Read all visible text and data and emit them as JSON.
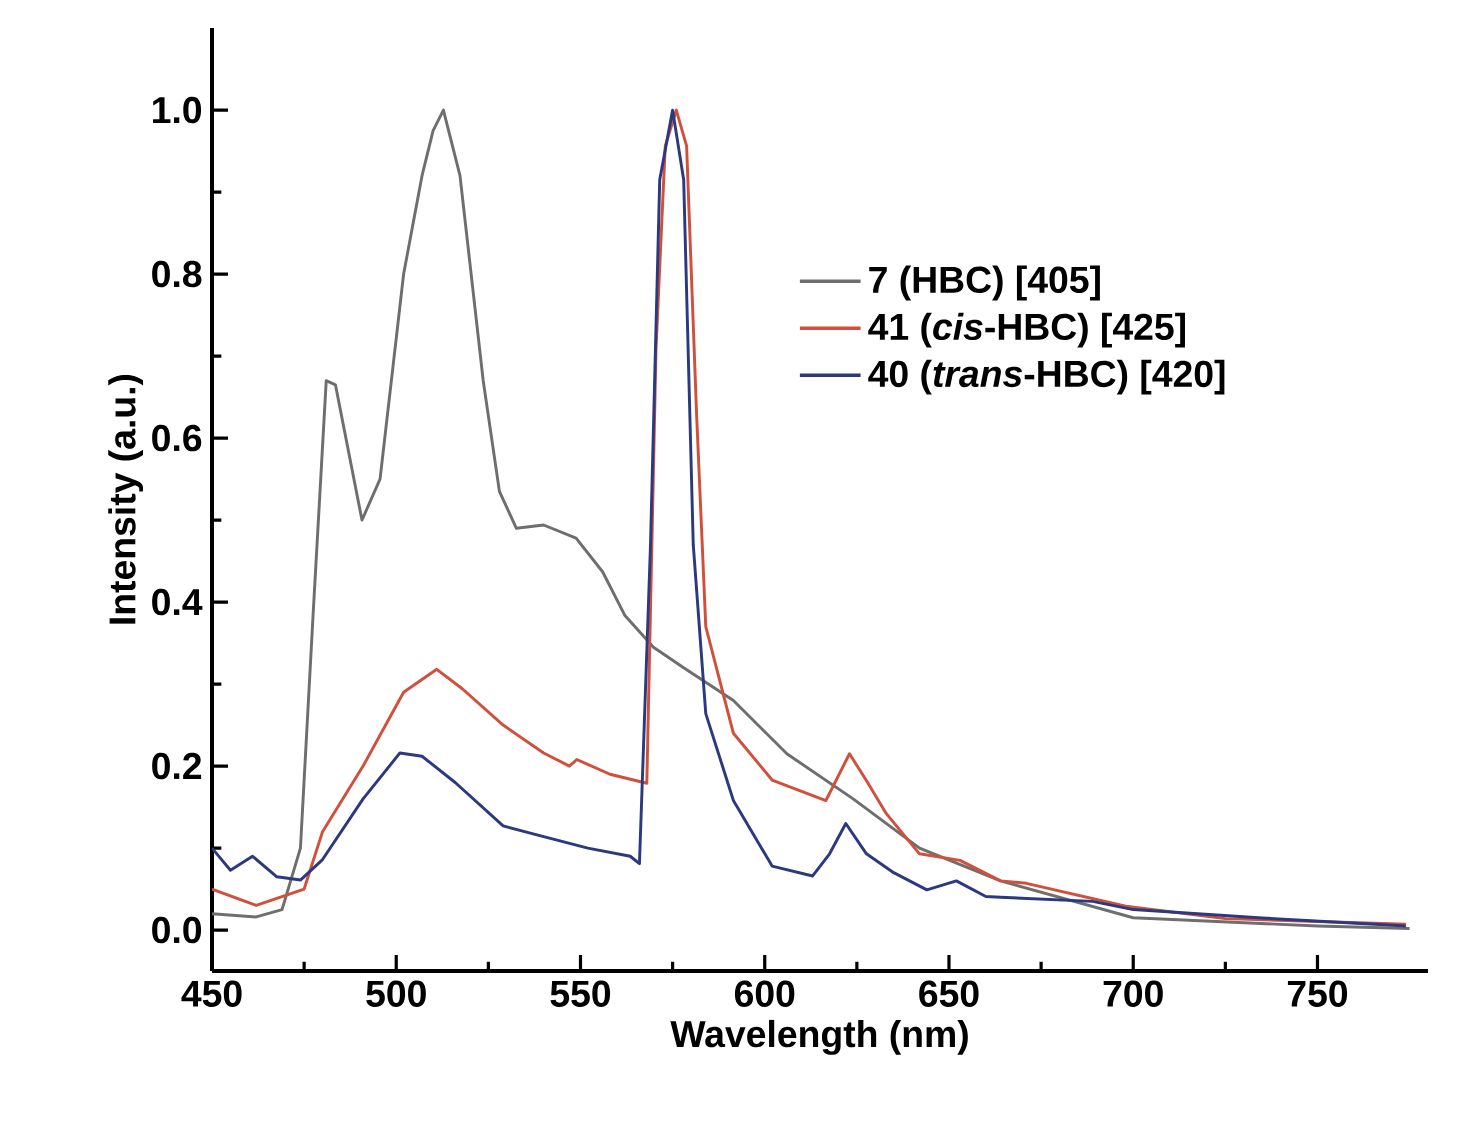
{
  "chart_data": {
    "type": "line",
    "xlabel": "Wavelength (nm)",
    "ylabel": "Intensity (a.u.)",
    "xlim": [
      450,
      780
    ],
    "ylim": [
      -0.05,
      1.1
    ],
    "xticks": [
      450,
      500,
      550,
      600,
      650,
      700,
      750
    ],
    "yticks": [
      {
        "value": 0,
        "label": "0.0"
      },
      {
        "value": 0.2,
        "label": "0.2"
      },
      {
        "value": 0.4,
        "label": "0.4"
      },
      {
        "value": 0.6,
        "label": "0.6"
      },
      {
        "value": 0.8,
        "label": "0.8"
      },
      {
        "value": 1,
        "label": "1.0"
      }
    ],
    "grid": false,
    "legend": "top right",
    "marker": "none",
    "line_style": "solid",
    "series": [
      {
        "name": "7 (HBC) [405]",
        "color": "#6e6e6e",
        "x": [
          450,
          462,
          469,
          474,
          477.5,
          481,
          483.5,
          490.7,
          495.6,
          502,
          507,
          510,
          512.8,
          517.3,
          523.6,
          528,
          532.6,
          540,
          548.8,
          556,
          562,
          569.8,
          578,
          591.5,
          606,
          624,
          642,
          664,
          700,
          750,
          775
        ],
        "values": [
          0.02,
          0.016,
          0.025,
          0.1,
          0.39,
          0.67,
          0.665,
          0.5,
          0.55,
          0.8,
          0.92,
          0.975,
          1.0,
          0.92,
          0.67,
          0.535,
          0.49,
          0.494,
          0.478,
          0.437,
          0.384,
          0.345,
          0.32,
          0.28,
          0.215,
          0.16,
          0.1,
          0.06,
          0.015,
          0.005,
          0.002
        ]
      },
      {
        "name": "41 (*cis*-HBC) [425]",
        "color": "#d0503c",
        "x": [
          450,
          462,
          475,
          480,
          491,
          502,
          511,
          518,
          529,
          540,
          547,
          549,
          558,
          568,
          570.5,
          573,
          576,
          578.8,
          581.5,
          584,
          591.5,
          602,
          616.6,
          623,
          627.5,
          633,
          642,
          653,
          664,
          671,
          698,
          725,
          774
        ],
        "values": [
          0.05,
          0.03,
          0.05,
          0.12,
          0.2,
          0.29,
          0.318,
          0.294,
          0.25,
          0.216,
          0.2,
          0.208,
          0.19,
          0.179,
          0.71,
          0.956,
          1.0,
          0.956,
          0.63,
          0.37,
          0.24,
          0.183,
          0.158,
          0.215,
          0.183,
          0.142,
          0.093,
          0.085,
          0.06,
          0.057,
          0.029,
          0.014,
          0.007
        ]
      },
      {
        "name": "40 (*trans*-HBC) [420]",
        "color": "#2b3a80",
        "x": [
          450,
          455,
          461,
          467.6,
          474,
          480,
          491,
          501,
          507,
          516,
          529,
          540,
          552,
          563.5,
          566,
          569,
          571.5,
          575,
          578,
          580.6,
          584,
          591.5,
          602,
          613,
          617.6,
          622,
          627.6,
          635,
          644,
          652,
          660,
          664,
          689,
          700,
          734,
          774
        ],
        "values": [
          0.1,
          0.073,
          0.09,
          0.065,
          0.061,
          0.086,
          0.16,
          0.216,
          0.212,
          0.18,
          0.127,
          0.114,
          0.1,
          0.09,
          0.081,
          0.47,
          0.915,
          1.0,
          0.915,
          0.47,
          0.264,
          0.158,
          0.078,
          0.066,
          0.093,
          0.13,
          0.093,
          0.07,
          0.049,
          0.06,
          0.041,
          0.04,
          0.035,
          0.025,
          0.015,
          0.005
        ]
      }
    ]
  }
}
